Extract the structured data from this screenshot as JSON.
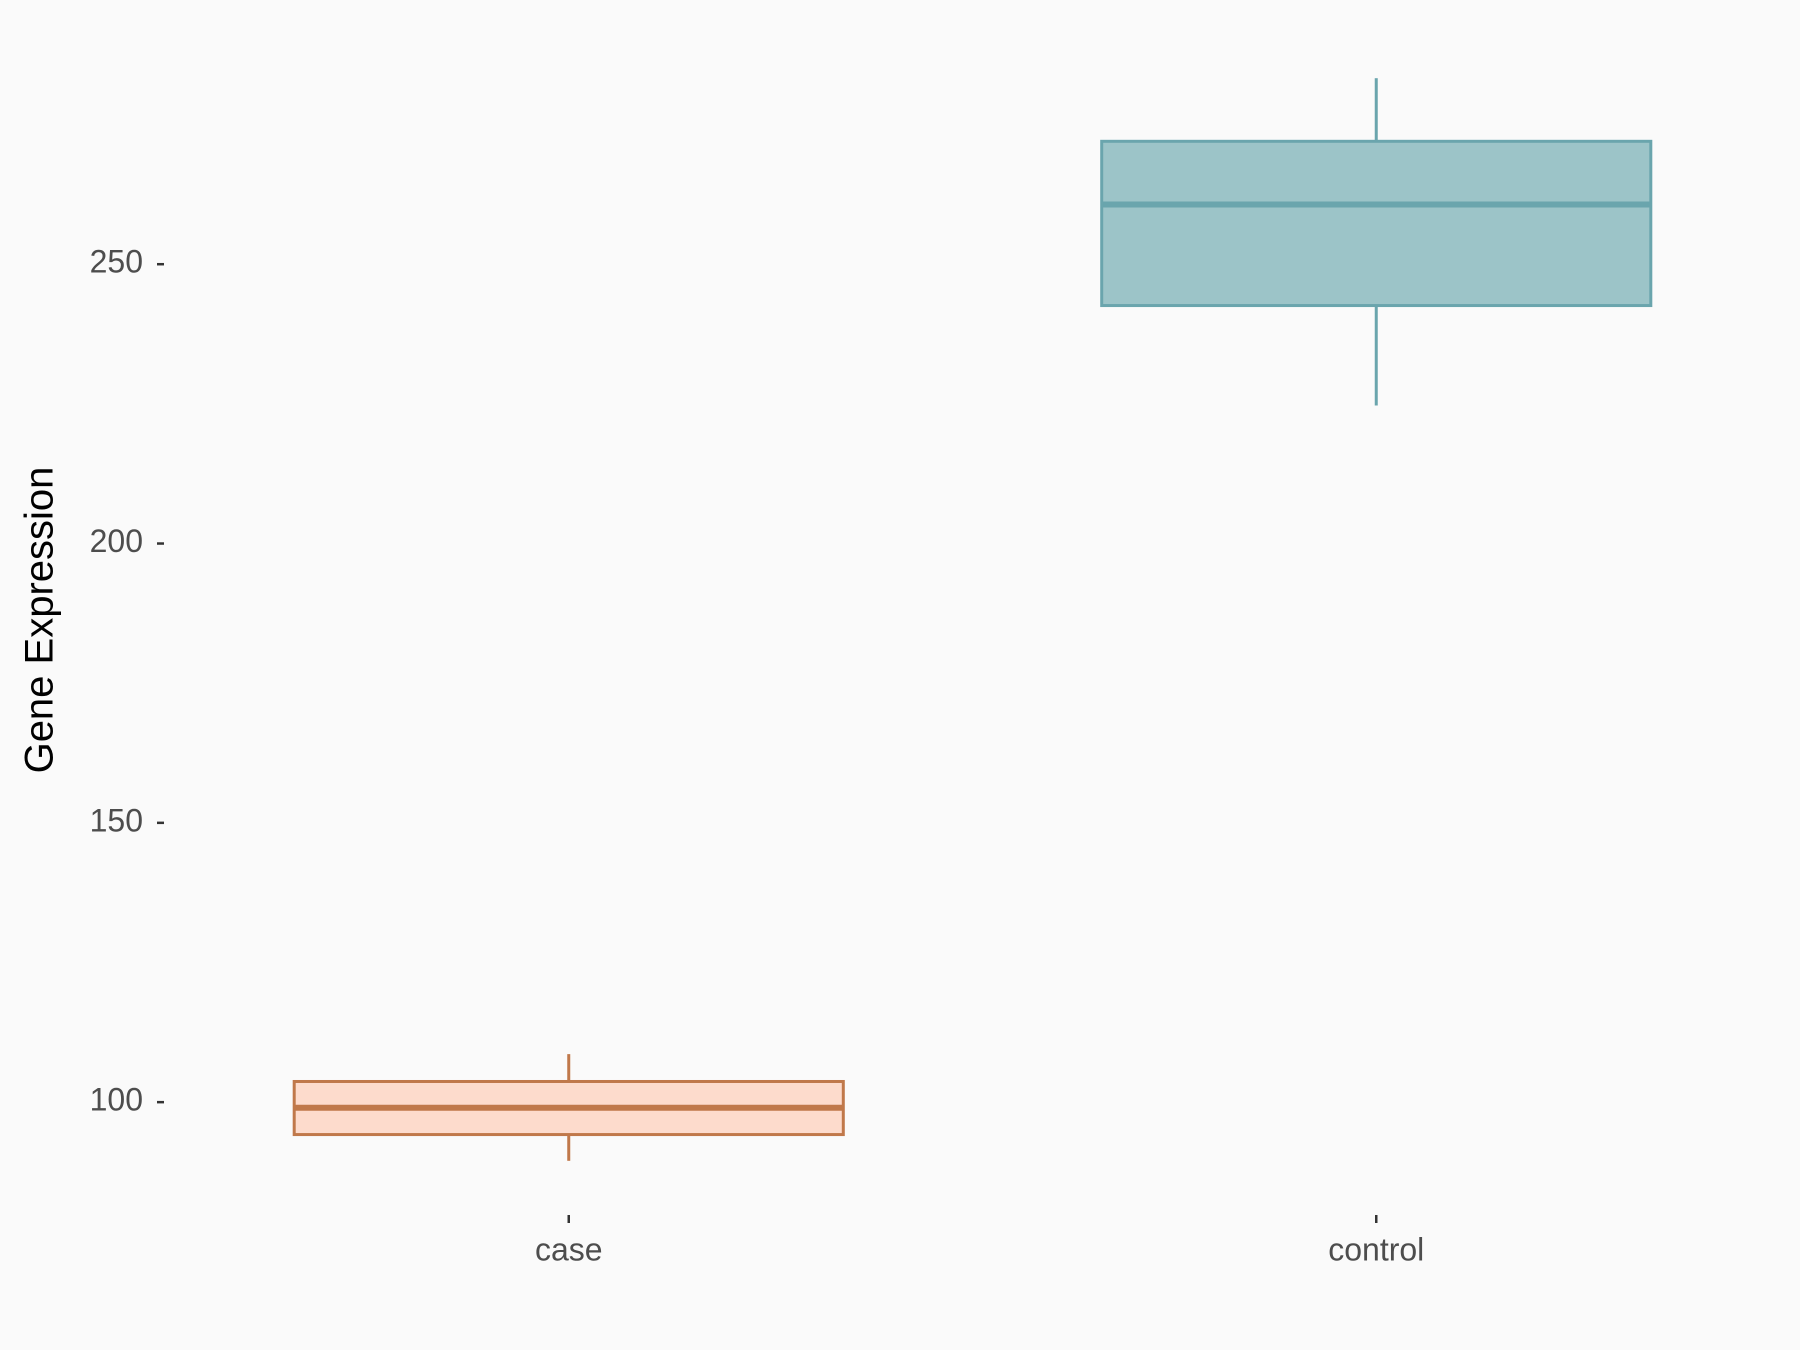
{
  "chart_data": {
    "type": "box",
    "y_label": "Gene Expression",
    "categories": [
      "case",
      "control"
    ],
    "boxes": [
      {
        "whisker_low": 89.5,
        "q1": 94.2,
        "median": 99,
        "q3": 103.7,
        "whisker_high": 108.6,
        "fill": "#fddbcc",
        "stroke": "#c0784a"
      },
      {
        "whisker_low": 224.7,
        "q1": 242.6,
        "median": 260.7,
        "q3": 272,
        "whisker_high": 283.3,
        "fill": "#9cc4c8",
        "stroke": "#6aa5ad"
      }
    ],
    "ylim": [
      79.8,
      293
    ],
    "yticks": [
      100,
      150,
      200,
      250
    ],
    "grid": false
  }
}
